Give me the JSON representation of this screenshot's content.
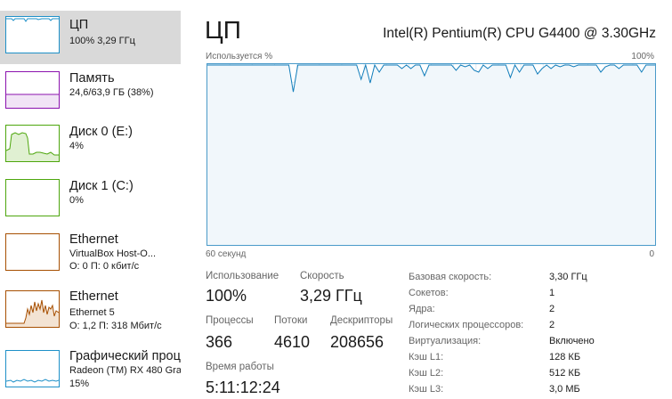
{
  "sidebar": {
    "items": [
      {
        "name": "ЦП",
        "sub1": "100%  3,29 ГГц",
        "sub2": "",
        "color": "#1e90c8"
      },
      {
        "name": "Память",
        "sub1": "24,6/63,9 ГБ (38%)",
        "sub2": "",
        "color": "#8b12ae"
      },
      {
        "name": "Диск 0 (E:)",
        "sub1": "4%",
        "sub2": "",
        "color": "#4da60c"
      },
      {
        "name": "Диск 1 (C:)",
        "sub1": "0%",
        "sub2": "",
        "color": "#4da60c"
      },
      {
        "name": "Ethernet",
        "sub1": "VirtualBox Host-O...",
        "sub2": "О: 0 П: 0 кбит/с",
        "color": "#a74f01"
      },
      {
        "name": "Ethernet",
        "sub1": "Ethernet 5",
        "sub2": "О: 1,2  П: 318 Мбит/с",
        "color": "#a74f01"
      },
      {
        "name": "Графический проц",
        "sub1": "Radeon (TM) RX 480 Gra",
        "sub2": "15%",
        "color": "#1e90c8"
      }
    ]
  },
  "main": {
    "title": "ЦП",
    "cpu_model": "Intel(R) Pentium(R) CPU G4400 @ 3.30GHz",
    "graph": {
      "label_left": "Используется %",
      "label_right": "100%",
      "axis_left": "60 секунд",
      "axis_right": "0",
      "line_color": "#117dbb",
      "grid_color": "#d9eaf4",
      "usage_values": [
        100,
        100,
        100,
        100,
        100,
        100,
        100,
        100,
        100,
        100,
        100,
        100,
        100,
        100,
        100,
        100,
        100,
        100,
        100,
        85,
        100,
        100,
        100,
        100,
        100,
        100,
        100,
        100,
        100,
        100,
        100,
        100,
        100,
        100,
        92,
        100,
        90,
        100,
        96,
        100,
        100,
        100,
        100,
        98,
        100,
        98,
        100,
        100,
        94,
        100,
        100,
        100,
        100,
        100,
        100,
        97,
        100,
        99,
        100,
        97,
        96,
        100,
        98,
        100,
        100,
        100,
        100,
        93,
        100,
        96,
        100,
        100,
        100,
        95,
        98,
        100,
        98,
        100,
        99,
        100,
        100,
        99,
        100,
        100,
        100,
        100,
        100,
        96,
        99,
        100,
        100,
        98,
        100,
        100,
        100,
        100,
        96,
        100,
        100,
        100
      ]
    },
    "stats": {
      "usage_label": "Использование",
      "usage_value": "100%",
      "speed_label": "Скорость",
      "speed_value": "3,29 ГГц",
      "processes_label": "Процессы",
      "processes_value": "366",
      "threads_label": "Потоки",
      "threads_value": "4610",
      "handles_label": "Дескрипторы",
      "handles_value": "208656",
      "uptime_label": "Время работы",
      "uptime_value": "5:11:12:24"
    },
    "specs": [
      {
        "key": "Базовая скорость:",
        "value": "3,30 ГГц"
      },
      {
        "key": "Сокетов:",
        "value": "1"
      },
      {
        "key": "Ядра:",
        "value": "2"
      },
      {
        "key": "Логических процессоров:",
        "value": "2"
      },
      {
        "key": "Виртуализация:",
        "value": "Включено"
      },
      {
        "key": "Кэш L1:",
        "value": "128 КБ"
      },
      {
        "key": "Кэш L2:",
        "value": "512 КБ"
      },
      {
        "key": "Кэш L3:",
        "value": "3,0 МБ"
      }
    ]
  }
}
